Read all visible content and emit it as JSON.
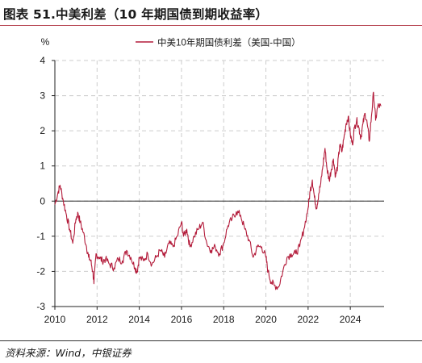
{
  "figure": {
    "title": "图表 51.中美利差（10 年期国债到期收益率）",
    "source": "资料来源：Wind，中银证券"
  },
  "colors": {
    "series": "#b31b3a",
    "title_rule": "#b23a48",
    "grid": "#cccccc",
    "axis": "#222222"
  },
  "chart_data": {
    "type": "line",
    "title": "",
    "ylabel": "%",
    "xlabel": "",
    "xlim": [
      2010,
      2025.6
    ],
    "ylim": [
      -3,
      4
    ],
    "x_ticks": [
      2010,
      2012,
      2014,
      2016,
      2018,
      2020,
      2022,
      2024
    ],
    "y_ticks": [
      -3,
      -2,
      -1,
      0,
      1,
      2,
      3,
      4
    ],
    "x_tick_labels": [
      "2010",
      "2012",
      "2014",
      "2016",
      "2018",
      "2020",
      "2022",
      "2024"
    ],
    "y_tick_labels": [
      "-3",
      "-2",
      "-1",
      "0",
      "1",
      "2",
      "3",
      "4"
    ],
    "grid": true,
    "legend_position": "top-center",
    "series": [
      {
        "name": "中美10年期国债利差（美国-中国）",
        "x": [
          2010.0,
          2010.15,
          2010.25,
          2010.4,
          2010.55,
          2010.7,
          2010.85,
          2011.0,
          2011.1,
          2011.2,
          2011.35,
          2011.5,
          2011.6,
          2011.7,
          2011.8,
          2011.85,
          2011.95,
          2012.1,
          2012.25,
          2012.4,
          2012.6,
          2012.8,
          2013.0,
          2013.2,
          2013.4,
          2013.6,
          2013.8,
          2013.9,
          2014.0,
          2014.2,
          2014.4,
          2014.6,
          2014.8,
          2015.0,
          2015.2,
          2015.4,
          2015.6,
          2015.8,
          2016.0,
          2016.1,
          2016.25,
          2016.4,
          2016.6,
          2016.8,
          2017.0,
          2017.2,
          2017.4,
          2017.6,
          2017.8,
          2018.0,
          2018.2,
          2018.4,
          2018.6,
          2018.8,
          2019.0,
          2019.2,
          2019.4,
          2019.6,
          2019.8,
          2020.0,
          2020.1,
          2020.25,
          2020.4,
          2020.6,
          2020.8,
          2021.0,
          2021.2,
          2021.4,
          2021.6,
          2021.8,
          2022.0,
          2022.1,
          2022.2,
          2022.3,
          2022.4,
          2022.5,
          2022.6,
          2022.7,
          2022.8,
          2022.9,
          2023.0,
          2023.1,
          2023.2,
          2023.3,
          2023.4,
          2023.5,
          2023.6,
          2023.7,
          2023.8,
          2023.9,
          2024.0,
          2024.1,
          2024.2,
          2024.3,
          2024.4,
          2024.5,
          2024.6,
          2024.7,
          2024.8,
          2024.9,
          2025.0,
          2025.1,
          2025.2,
          2025.3,
          2025.45
        ],
        "values": [
          -0.1,
          0.25,
          0.45,
          0.0,
          -0.4,
          -0.8,
          -1.2,
          -0.5,
          -0.35,
          -0.6,
          -0.9,
          -1.3,
          -1.6,
          -1.7,
          -2.0,
          -2.35,
          -1.5,
          -1.6,
          -1.7,
          -1.65,
          -1.8,
          -1.9,
          -1.65,
          -1.7,
          -1.4,
          -1.6,
          -1.9,
          -2.0,
          -1.6,
          -1.7,
          -1.5,
          -1.8,
          -1.6,
          -1.4,
          -1.6,
          -1.2,
          -1.3,
          -1.0,
          -0.6,
          -1.0,
          -0.8,
          -1.3,
          -1.0,
          -0.8,
          -0.6,
          -1.2,
          -1.4,
          -1.3,
          -1.5,
          -1.2,
          -0.7,
          -0.5,
          -0.3,
          -0.4,
          -0.8,
          -1.1,
          -1.6,
          -1.3,
          -1.3,
          -1.6,
          -2.0,
          -2.3,
          -2.4,
          -2.45,
          -2.0,
          -1.6,
          -1.5,
          -1.5,
          -1.3,
          -0.8,
          -0.2,
          0.3,
          0.6,
          0.1,
          -0.2,
          0.2,
          0.5,
          1.0,
          1.5,
          0.9,
          0.6,
          0.9,
          1.2,
          0.7,
          1.0,
          1.6,
          1.4,
          1.8,
          2.2,
          2.4,
          1.9,
          1.6,
          2.1,
          2.3,
          2.1,
          1.8,
          2.2,
          2.5,
          2.2,
          1.7,
          2.4,
          3.1,
          2.3,
          2.7,
          2.7
        ]
      }
    ]
  }
}
